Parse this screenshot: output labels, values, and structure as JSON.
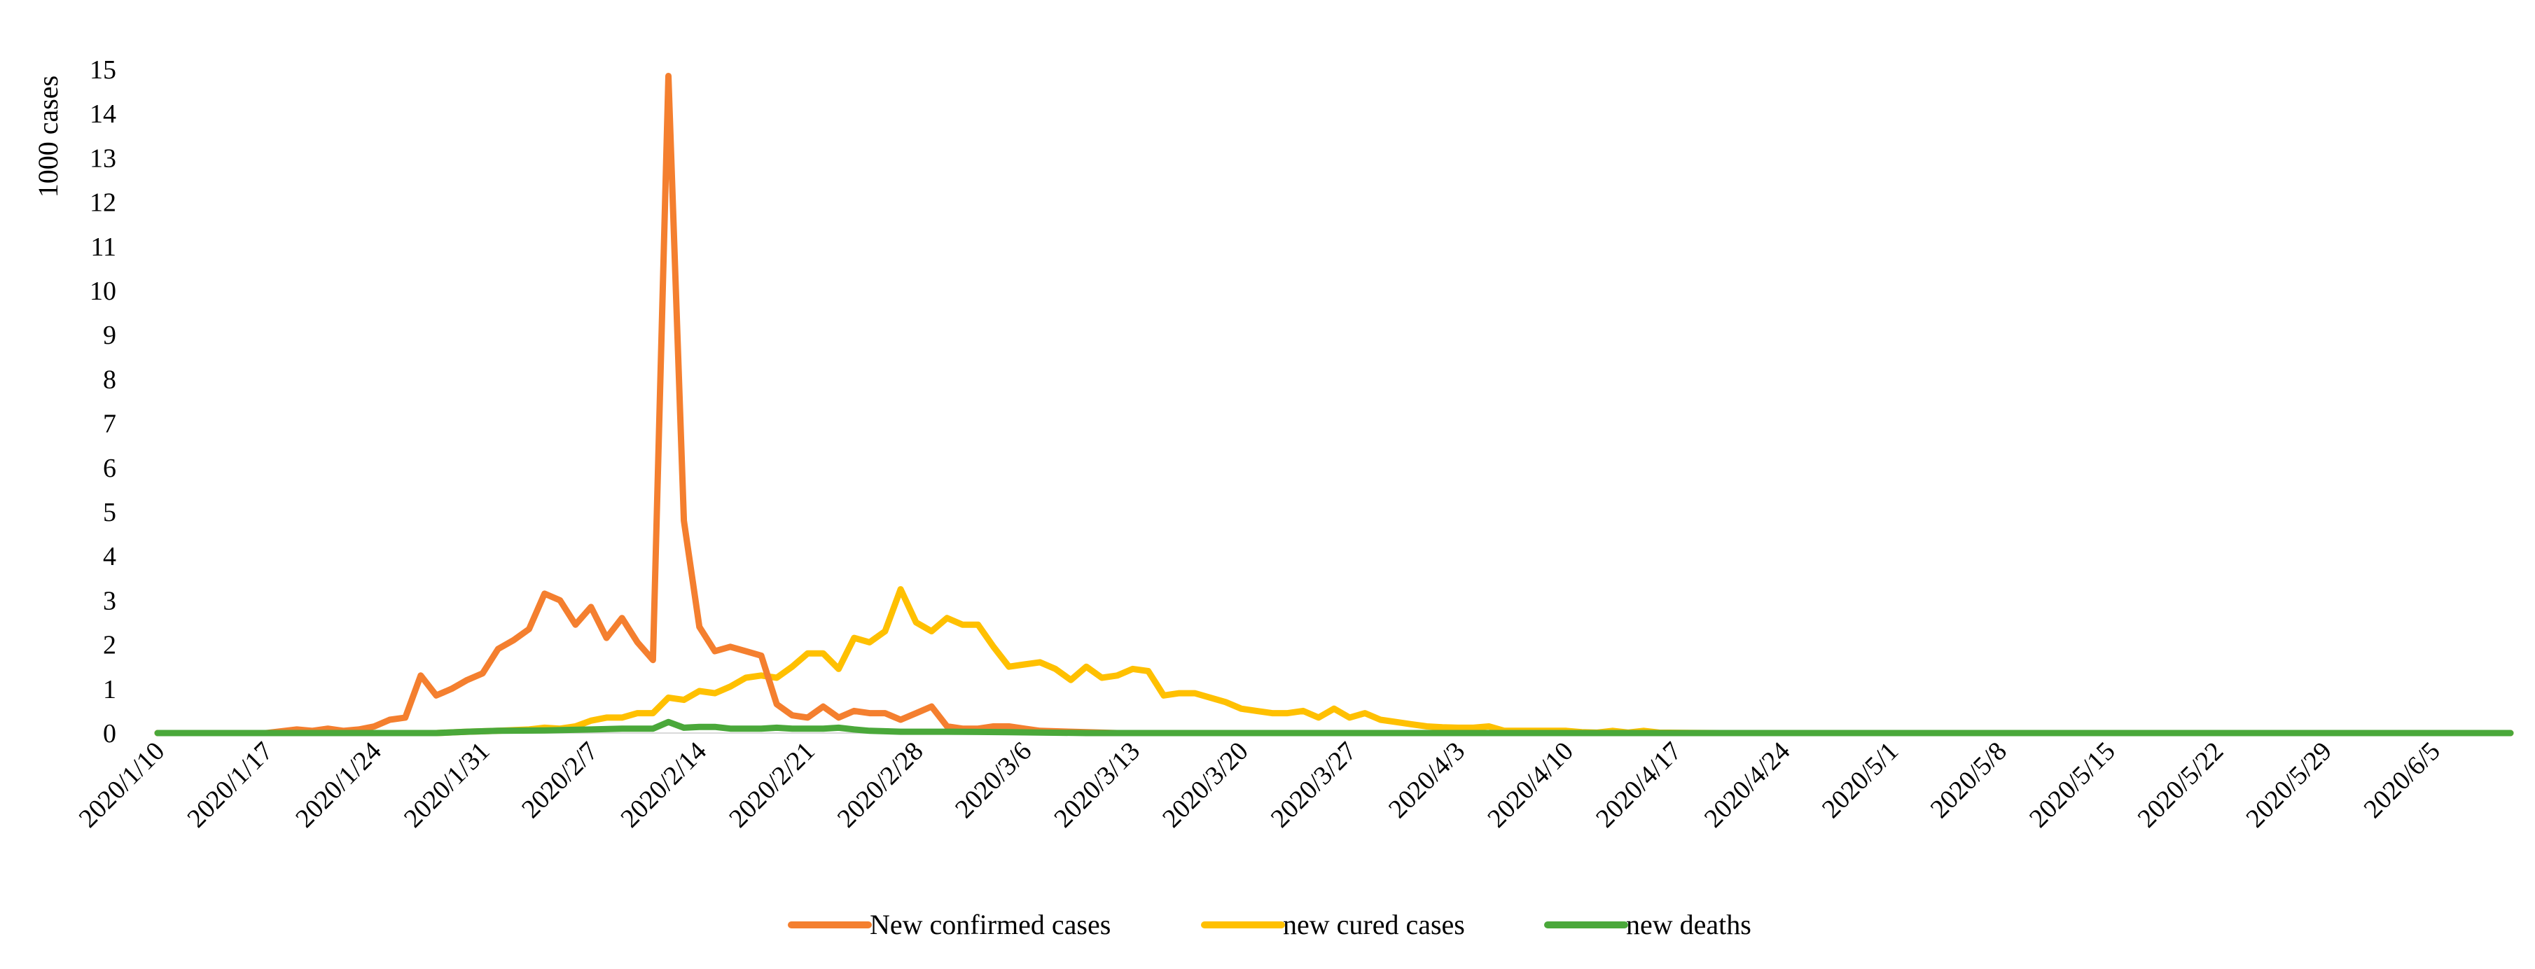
{
  "chart_data": {
    "type": "line",
    "ylabel": "1000 cases",
    "xlabel": "",
    "ylim": [
      0,
      15
    ],
    "y_ticks": [
      "0",
      "1",
      "2",
      "3",
      "4",
      "5",
      "6",
      "7",
      "8",
      "9",
      "10",
      "11",
      "12",
      "13",
      "14",
      "15"
    ],
    "x_tick_labels": [
      "2020/1/10",
      "2020/1/17",
      "2020/1/24",
      "2020/1/31",
      "2020/2/7",
      "2020/2/14",
      "2020/2/21",
      "2020/2/28",
      "2020/3/6",
      "2020/3/13",
      "2020/3/20",
      "2020/3/27",
      "2020/4/3",
      "2020/4/10",
      "2020/4/17",
      "2020/4/24",
      "2020/5/1",
      "2020/5/8",
      "2020/5/15",
      "2020/5/22",
      "2020/5/29",
      "2020/6/5"
    ],
    "x_start": "2020/1/10",
    "x_end": "2020/6/10",
    "grid": false,
    "legend_position": "bottom",
    "series": [
      {
        "name": "New confirmed cases",
        "color": "#f47f2f",
        "points": [
          [
            "2020/1/10",
            0
          ],
          [
            "2020/1/17",
            0
          ],
          [
            "2020/1/19",
            0.08
          ],
          [
            "2020/1/20",
            0.05
          ],
          [
            "2020/1/21",
            0.1
          ],
          [
            "2020/1/22",
            0.05
          ],
          [
            "2020/1/23",
            0.08
          ],
          [
            "2020/1/24",
            0.15
          ],
          [
            "2020/1/25",
            0.3
          ],
          [
            "2020/1/26",
            0.35
          ],
          [
            "2020/1/27",
            1.3
          ],
          [
            "2020/1/28",
            0.85
          ],
          [
            "2020/1/29",
            1.0
          ],
          [
            "2020/1/30",
            1.2
          ],
          [
            "2020/1/31",
            1.35
          ],
          [
            "2020/2/1",
            1.9
          ],
          [
            "2020/2/2",
            2.1
          ],
          [
            "2020/2/3",
            2.35
          ],
          [
            "2020/2/4",
            3.15
          ],
          [
            "2020/2/5",
            3.0
          ],
          [
            "2020/2/6",
            2.45
          ],
          [
            "2020/2/7",
            2.85
          ],
          [
            "2020/2/8",
            2.15
          ],
          [
            "2020/2/9",
            2.6
          ],
          [
            "2020/2/10",
            2.05
          ],
          [
            "2020/2/11",
            1.65
          ],
          [
            "2020/2/12",
            14.85
          ],
          [
            "2020/2/13",
            4.8
          ],
          [
            "2020/2/14",
            2.4
          ],
          [
            "2020/2/15",
            1.85
          ],
          [
            "2020/2/16",
            1.95
          ],
          [
            "2020/2/17",
            1.85
          ],
          [
            "2020/2/18",
            1.75
          ],
          [
            "2020/2/19",
            0.65
          ],
          [
            "2020/2/20",
            0.4
          ],
          [
            "2020/2/21",
            0.35
          ],
          [
            "2020/2/22",
            0.6
          ],
          [
            "2020/2/23",
            0.35
          ],
          [
            "2020/2/24",
            0.5
          ],
          [
            "2020/2/25",
            0.45
          ],
          [
            "2020/2/26",
            0.45
          ],
          [
            "2020/2/27",
            0.3
          ],
          [
            "2020/2/28",
            0.45
          ],
          [
            "2020/2/29",
            0.6
          ],
          [
            "2020/3/1",
            0.15
          ],
          [
            "2020/3/2",
            0.1
          ],
          [
            "2020/3/3",
            0.1
          ],
          [
            "2020/3/4",
            0.15
          ],
          [
            "2020/3/5",
            0.15
          ],
          [
            "2020/3/6",
            0.1
          ],
          [
            "2020/3/7",
            0.05
          ],
          [
            "2020/3/9",
            0.03
          ],
          [
            "2020/3/12",
            0
          ],
          [
            "2020/6/10",
            0
          ]
        ]
      },
      {
        "name": "new cured cases",
        "color": "#ffc000",
        "points": [
          [
            "2020/1/10",
            0
          ],
          [
            "2020/1/28",
            0
          ],
          [
            "2020/1/30",
            0.03
          ],
          [
            "2020/2/1",
            0.05
          ],
          [
            "2020/2/3",
            0.08
          ],
          [
            "2020/2/4",
            0.12
          ],
          [
            "2020/2/5",
            0.1
          ],
          [
            "2020/2/6",
            0.15
          ],
          [
            "2020/2/7",
            0.28
          ],
          [
            "2020/2/8",
            0.35
          ],
          [
            "2020/2/9",
            0.35
          ],
          [
            "2020/2/10",
            0.45
          ],
          [
            "2020/2/11",
            0.45
          ],
          [
            "2020/2/12",
            0.8
          ],
          [
            "2020/2/13",
            0.75
          ],
          [
            "2020/2/14",
            0.95
          ],
          [
            "2020/2/15",
            0.9
          ],
          [
            "2020/2/16",
            1.05
          ],
          [
            "2020/2/17",
            1.25
          ],
          [
            "2020/2/18",
            1.3
          ],
          [
            "2020/2/19",
            1.25
          ],
          [
            "2020/2/20",
            1.5
          ],
          [
            "2020/2/21",
            1.8
          ],
          [
            "2020/2/22",
            1.8
          ],
          [
            "2020/2/23",
            1.45
          ],
          [
            "2020/2/24",
            2.15
          ],
          [
            "2020/2/25",
            2.05
          ],
          [
            "2020/2/26",
            2.3
          ],
          [
            "2020/2/27",
            3.25
          ],
          [
            "2020/2/28",
            2.5
          ],
          [
            "2020/2/29",
            2.3
          ],
          [
            "2020/3/1",
            2.6
          ],
          [
            "2020/3/2",
            2.45
          ],
          [
            "2020/3/3",
            2.45
          ],
          [
            "2020/3/4",
            1.95
          ],
          [
            "2020/3/5",
            1.5
          ],
          [
            "2020/3/6",
            1.55
          ],
          [
            "2020/3/7",
            1.6
          ],
          [
            "2020/3/8",
            1.45
          ],
          [
            "2020/3/9",
            1.2
          ],
          [
            "2020/3/10",
            1.5
          ],
          [
            "2020/3/11",
            1.25
          ],
          [
            "2020/3/12",
            1.3
          ],
          [
            "2020/3/13",
            1.45
          ],
          [
            "2020/3/14",
            1.4
          ],
          [
            "2020/3/15",
            0.85
          ],
          [
            "2020/3/16",
            0.9
          ],
          [
            "2020/3/17",
            0.9
          ],
          [
            "2020/3/18",
            0.8
          ],
          [
            "2020/3/19",
            0.7
          ],
          [
            "2020/3/20",
            0.55
          ],
          [
            "2020/3/21",
            0.5
          ],
          [
            "2020/3/22",
            0.45
          ],
          [
            "2020/3/23",
            0.45
          ],
          [
            "2020/3/24",
            0.5
          ],
          [
            "2020/3/25",
            0.35
          ],
          [
            "2020/3/26",
            0.55
          ],
          [
            "2020/3/27",
            0.35
          ],
          [
            "2020/3/28",
            0.45
          ],
          [
            "2020/3/29",
            0.3
          ],
          [
            "2020/3/30",
            0.25
          ],
          [
            "2020/3/31",
            0.2
          ],
          [
            "2020/4/1",
            0.15
          ],
          [
            "2020/4/2",
            0.13
          ],
          [
            "2020/4/3",
            0.12
          ],
          [
            "2020/4/4",
            0.12
          ],
          [
            "2020/4/5",
            0.15
          ],
          [
            "2020/4/6",
            0.05
          ],
          [
            "2020/4/7",
            0.05
          ],
          [
            "2020/4/8",
            0.05
          ],
          [
            "2020/4/9",
            0.05
          ],
          [
            "2020/4/10",
            0.05
          ],
          [
            "2020/4/11",
            0.02
          ],
          [
            "2020/4/12",
            0.01
          ],
          [
            "2020/4/13",
            0.05
          ],
          [
            "2020/4/14",
            0.01
          ],
          [
            "2020/4/15",
            0.05
          ],
          [
            "2020/4/16",
            0.01
          ],
          [
            "2020/4/20",
            0
          ],
          [
            "2020/6/10",
            0
          ]
        ]
      },
      {
        "name": "new deaths",
        "color": "#4aa83a",
        "points": [
          [
            "2020/1/10",
            0
          ],
          [
            "2020/1/28",
            0
          ],
          [
            "2020/1/30",
            0.03
          ],
          [
            "2020/2/1",
            0.05
          ],
          [
            "2020/2/4",
            0.06
          ],
          [
            "2020/2/7",
            0.08
          ],
          [
            "2020/2/9",
            0.1
          ],
          [
            "2020/2/11",
            0.1
          ],
          [
            "2020/2/12",
            0.25
          ],
          [
            "2020/2/13",
            0.12
          ],
          [
            "2020/2/14",
            0.14
          ],
          [
            "2020/2/15",
            0.14
          ],
          [
            "2020/2/16",
            0.1
          ],
          [
            "2020/2/17",
            0.1
          ],
          [
            "2020/2/18",
            0.1
          ],
          [
            "2020/2/19",
            0.12
          ],
          [
            "2020/2/20",
            0.1
          ],
          [
            "2020/2/21",
            0.1
          ],
          [
            "2020/2/22",
            0.1
          ],
          [
            "2020/2/23",
            0.12
          ],
          [
            "2020/2/24",
            0.08
          ],
          [
            "2020/2/25",
            0.05
          ],
          [
            "2020/2/27",
            0.03
          ],
          [
            "2020/3/1",
            0.03
          ],
          [
            "2020/3/5",
            0.02
          ],
          [
            "2020/3/10",
            0
          ],
          [
            "2020/6/10",
            0
          ]
        ]
      }
    ]
  }
}
